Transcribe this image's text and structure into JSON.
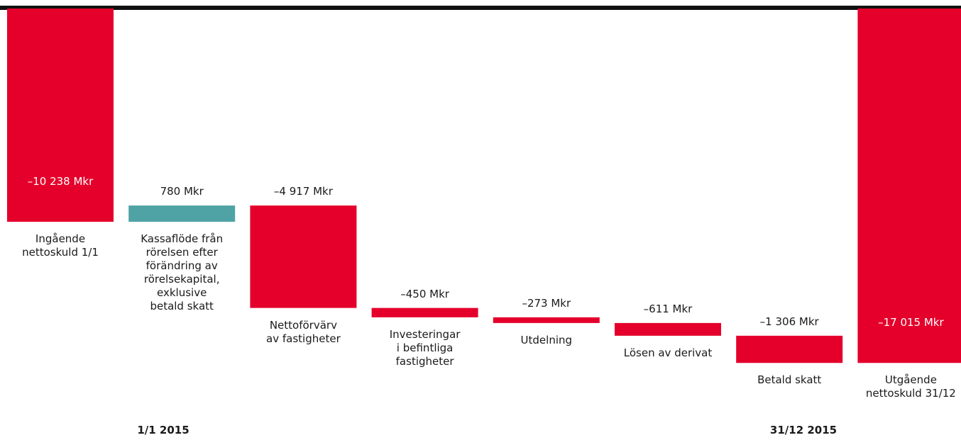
{
  "chart_data": {
    "type": "waterfall",
    "categories": [
      "Ingående\nnettoskuld 1/1",
      "Kassaflöde från\nrörelsen efter\nförändring av\nrörelsekapital,\nexklusive\nbetald skatt",
      "Nettoförvärv\nav fastigheter",
      "Investeringar\ni befintliga\nfastigheter",
      "Utdelning",
      "Lösen av derivat",
      "Betald skatt",
      "Utgående\nnettoskuld 31/12"
    ],
    "values": [
      -10238,
      780,
      -4917,
      -450,
      -273,
      -611,
      -1306,
      -17015
    ],
    "value_labels": [
      "–10 238 Mkr",
      "780 Mkr",
      "–4 917 Mkr",
      "–450 Mkr",
      "–273 Mkr",
      "–611 Mkr",
      "–1 306 Mkr",
      "–17 015 Mkr"
    ],
    "colors": {
      "negative": "#e4002b",
      "positive": "#4fa3a5"
    },
    "ylim": [
      -20000,
      0
    ],
    "annotations": [
      "1/1 2015",
      "31/12 2015"
    ]
  }
}
